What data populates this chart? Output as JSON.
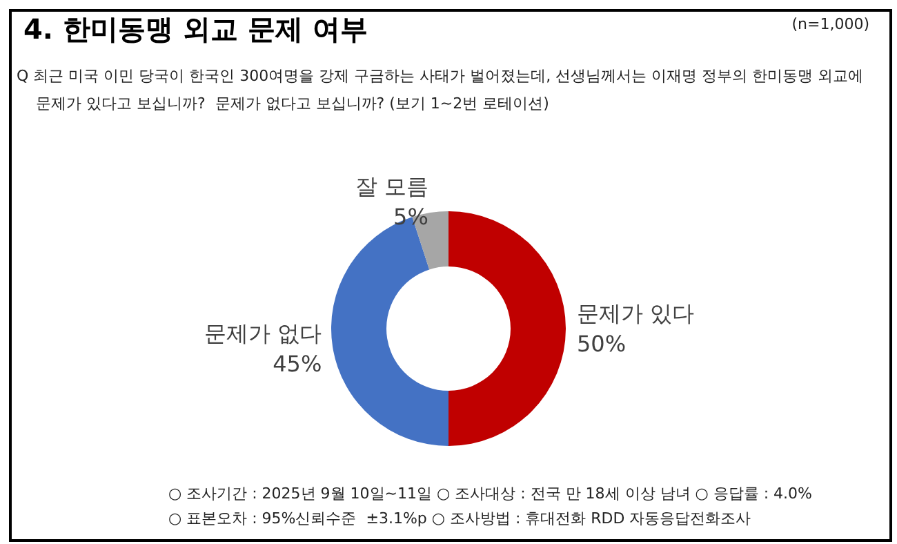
{
  "chart_data": {
    "type": "donut",
    "title": "4. 한미동맹 외교 문제 여부",
    "categories": [
      "문제가 있다",
      "문제가 없다",
      "잘 모름"
    ],
    "values": [
      50,
      45,
      5
    ],
    "value_labels": [
      "50%",
      "45%",
      "5%"
    ],
    "colors": [
      "#c00000",
      "#4472c4",
      "#a6a6a6"
    ],
    "legend": false,
    "annotations": [
      "(n=1,000)",
      "Q 최근 미국 이민 당국이 한국인 300여명을 강제 구금하는 사태가 벌어졌는데, 선생님께서는 이재명 정부의 한미동맹 외교에\n    문제가 있다고 보십니까?  문제가 없다고 보십니까? (보기 1~2번 로테이션)",
      "○ 조사기간 : 2025년 9월 10일~11일 ○ 조사대상 : 전국 만 18세 이상 남녀 ○ 응답률 : 4.0%",
      "○ 표본오차 : 95%신뢰수준  ±3.1%p ○ 조사방법 : 휴대전화 RDD 자동응답전화조사"
    ]
  }
}
